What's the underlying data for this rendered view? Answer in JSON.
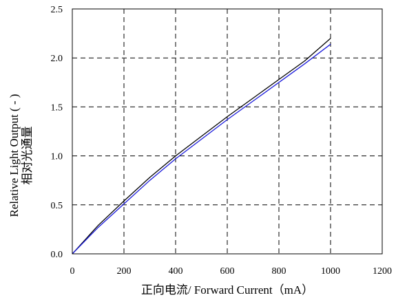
{
  "chart_data": {
    "type": "line",
    "title": "",
    "xlabel": "正向电流/ Forward Current（mA）",
    "ylabel_en": "Relative Light Output ( - )",
    "ylabel_cn": "相对光通量",
    "xlim": [
      0,
      1200
    ],
    "ylim": [
      0,
      2.5
    ],
    "xticks": [
      "0",
      "200",
      "400",
      "600",
      "800",
      "1000",
      "1200"
    ],
    "yticks": [
      "0.0",
      "0.5",
      "1.0",
      "1.5",
      "2.0",
      "2.5"
    ],
    "xgrid": [
      200,
      400,
      600,
      800,
      1000
    ],
    "ygrid": [
      0.5,
      1.0,
      1.5,
      2.0
    ],
    "grid": true,
    "legend": "none",
    "series": [
      {
        "color": "#000000",
        "x": [
          0,
          100,
          200,
          300,
          400,
          500,
          600,
          700,
          800,
          900,
          1000
        ],
        "values": [
          0,
          0.29,
          0.54,
          0.78,
          1.0,
          1.2,
          1.4,
          1.59,
          1.78,
          1.97,
          2.2
        ]
      },
      {
        "color": "#1a1adb",
        "x": [
          0,
          100,
          200,
          300,
          400,
          500,
          600,
          700,
          800,
          900,
          1000
        ],
        "values": [
          0,
          0.27,
          0.51,
          0.75,
          0.97,
          1.17,
          1.37,
          1.56,
          1.75,
          1.94,
          2.14
        ]
      }
    ]
  }
}
